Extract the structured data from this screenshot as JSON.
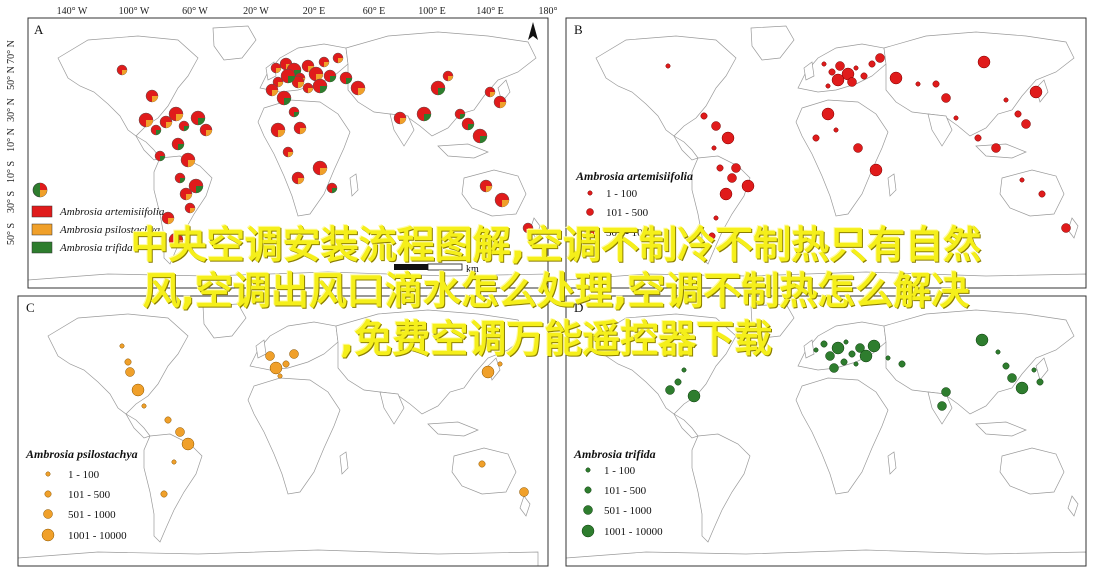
{
  "lon_ticks": [
    "140° W",
    "100° W",
    "60° W",
    "20° W",
    "20° E",
    "60° E",
    "100° E",
    "140° E",
    "180°"
  ],
  "lat_ticks_a": [
    "70° N",
    "50° N",
    "30° N",
    "10° N",
    "10° S",
    "30° S",
    "50° S"
  ],
  "panels": {
    "A": {
      "letter": "A"
    },
    "B": {
      "letter": "B"
    },
    "C": {
      "letter": "C"
    },
    "D": {
      "letter": "D"
    }
  },
  "legend_a": {
    "items": [
      "Ambrosia artemisiifolia",
      "Ambrosia psilostachya",
      "Ambrosia trifida"
    ],
    "colors": [
      "#e01b1b",
      "#f0a02a",
      "#2e7d2e"
    ]
  },
  "scale": {
    "km": "km"
  },
  "legend_b": {
    "title": "Ambrosia artemisiifolia",
    "labels": [
      "1 - 100",
      "101 - 500",
      "501 - 1000",
      "1001 - 10000"
    ],
    "color": "#e01b1b"
  },
  "legend_c": {
    "title": "Ambrosia psilostachya",
    "labels": [
      "1 - 100",
      "101 - 500",
      "501 - 1000",
      "1001 - 10000"
    ],
    "color": "#f0a02a"
  },
  "legend_d": {
    "title": "Ambrosia trifida",
    "labels": [
      "1 - 100",
      "101 - 500",
      "501 - 1000",
      "1001 - 10000"
    ],
    "color": "#2e7d2e"
  },
  "overlay_text": {
    "line1": "中央空调安装流程图解,空调不制冷不制热只有自然",
    "line2": "风,空调出风口滴水怎么处理,空调不制热怎么解决",
    "line3": ",免费空调万能遥控器下载"
  }
}
